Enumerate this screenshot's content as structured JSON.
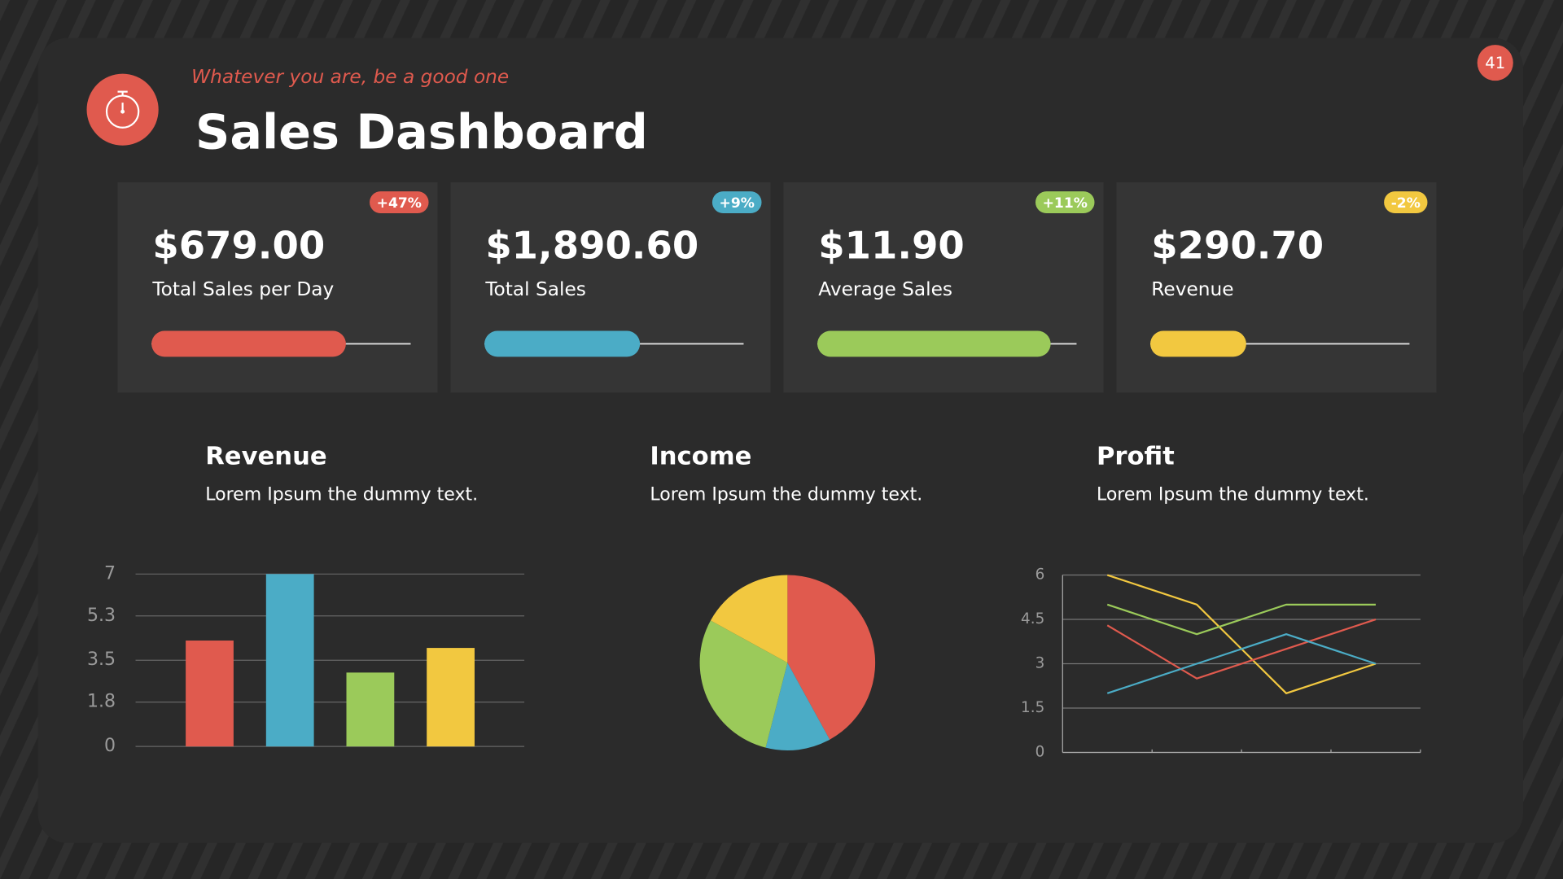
{
  "header": {
    "subtitle": "Whatever you are, be a good one",
    "title": "Sales Dashboard",
    "page_number": "41"
  },
  "cards": [
    {
      "value": "$679.00",
      "label": "Total Sales per Day",
      "change": "+47%",
      "color": "#e05a4e",
      "progress": 75
    },
    {
      "value": "$1,890.60",
      "label": "Total Sales",
      "change": "+9%",
      "color": "#4bacc6",
      "progress": 60
    },
    {
      "value": "$11.90",
      "label": "Average Sales",
      "change": "+11%",
      "color": "#9bca5a",
      "progress": 90
    },
    {
      "value": "$290.70",
      "label": "Revenue",
      "change": "-2%",
      "color": "#f2c840",
      "progress": 37
    }
  ],
  "chart_data": [
    {
      "type": "bar",
      "title": "Revenue",
      "subtitle": "Lorem Ipsum the dummy text.",
      "categories": [
        null,
        null,
        null,
        null
      ],
      "values": [
        4.3,
        7,
        3,
        4
      ],
      "colors": [
        "#e05a4e",
        "#4bacc6",
        "#9bca5a",
        "#f2c840"
      ],
      "ylim": [
        0,
        7
      ],
      "yticks": [
        0,
        1.8,
        3.5,
        5.3,
        7
      ],
      "grid": true
    },
    {
      "type": "pie",
      "title": "Income",
      "subtitle": "Lorem Ipsum the dummy text.",
      "values": [
        42,
        12,
        29,
        17
      ],
      "colors": [
        "#e05a4e",
        "#4bacc6",
        "#9bca5a",
        "#f2c840"
      ]
    },
    {
      "type": "line",
      "title": "Profit",
      "subtitle": "Lorem Ipsum the dummy text.",
      "categories": [
        null,
        null,
        null,
        null
      ],
      "series": [
        {
          "color": "#f2c840",
          "values": [
            6,
            5,
            2,
            3
          ]
        },
        {
          "color": "#9bca5a",
          "values": [
            5,
            4,
            5,
            5
          ]
        },
        {
          "color": "#e05a4e",
          "values": [
            4.3,
            2.5,
            3.5,
            4.5
          ]
        },
        {
          "color": "#4bacc6",
          "values": [
            2,
            3,
            4,
            3
          ]
        }
      ],
      "ylim": [
        0,
        6
      ],
      "yticks": [
        0,
        1.5,
        3,
        4.5,
        6
      ],
      "grid": true
    }
  ]
}
